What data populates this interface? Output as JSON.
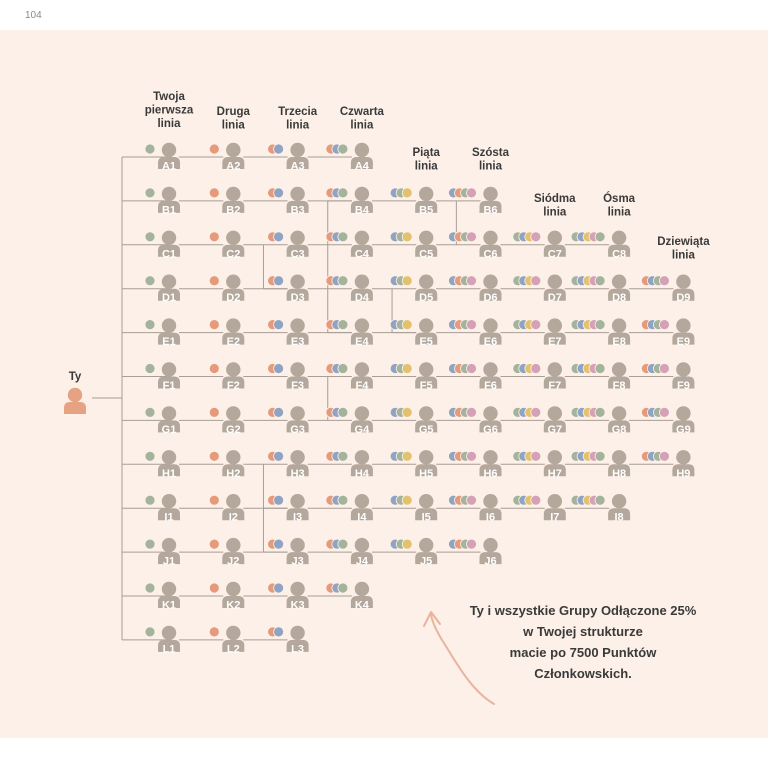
{
  "page_number": "104",
  "you_label": "Ty",
  "colors": {
    "node": "#b4a79b",
    "you": "#e6a384",
    "line": "#a89e96",
    "dot_green": "#a4b39c",
    "dot_orange": "#e59a7b",
    "dot_blue": "#8fa3c2",
    "dot_yellow": "#e3c26f",
    "dot_pink": "#d5a1b6",
    "arrow": "#e8b49c"
  },
  "line_headers": [
    {
      "col": 1,
      "lines": [
        "Twoja",
        "pierwsza",
        "linia"
      ]
    },
    {
      "col": 2,
      "lines": [
        "Druga",
        "linia"
      ]
    },
    {
      "col": 3,
      "lines": [
        "Trzecia",
        "linia"
      ]
    },
    {
      "col": 4,
      "lines": [
        "Czwarta",
        "linia"
      ]
    },
    {
      "col": 5,
      "lines": [
        "Piąta",
        "linia"
      ]
    },
    {
      "col": 6,
      "lines": [
        "Szósta",
        "linia"
      ]
    },
    {
      "col": 7,
      "lines": [
        "Siódma",
        "linia"
      ]
    },
    {
      "col": 8,
      "lines": [
        "Ósma",
        "linia"
      ]
    },
    {
      "col": 9,
      "lines": [
        "Dziewiąta",
        "linia"
      ]
    }
  ],
  "rows": [
    {
      "letter": "A",
      "count": 4
    },
    {
      "letter": "B",
      "count": 6
    },
    {
      "letter": "C",
      "count": 8
    },
    {
      "letter": "D",
      "count": 9
    },
    {
      "letter": "E",
      "count": 9
    },
    {
      "letter": "F",
      "count": 9
    },
    {
      "letter": "G",
      "count": 9
    },
    {
      "letter": "H",
      "count": 9
    },
    {
      "letter": "I",
      "count": 8
    },
    {
      "letter": "J",
      "count": 6
    },
    {
      "letter": "K",
      "count": 4
    },
    {
      "letter": "L",
      "count": 3
    }
  ],
  "note_lines": [
    "Ty i wszystkie Grupy Odłączone 25%",
    "w Twojej strukturze",
    "macie po 7500 Punktów",
    "Członkowskich."
  ]
}
